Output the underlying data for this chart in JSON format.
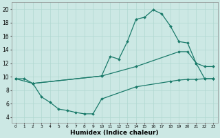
{
  "bg_color": "#cce8e4",
  "grid_color": "#b0d8d0",
  "line_color": "#1a7a6a",
  "line_width": 0.9,
  "marker": "D",
  "marker_size": 2.0,
  "xlabel": "Humidex (Indice chaleur)",
  "xlabel_fontsize": 6.5,
  "ytick_labels": [
    "4",
    "6",
    "8",
    "10",
    "12",
    "14",
    "16",
    "18",
    "20"
  ],
  "yticks": [
    4,
    6,
    8,
    10,
    12,
    14,
    16,
    18,
    20
  ],
  "xlim": [
    -0.5,
    23.5
  ],
  "ylim": [
    3.2,
    21.0
  ],
  "curve1_x": [
    0,
    1,
    2,
    10,
    11,
    12,
    13,
    14,
    15,
    16,
    17,
    18,
    19,
    20,
    21,
    22,
    23
  ],
  "curve1_y": [
    9.7,
    9.7,
    9.0,
    10.1,
    13.0,
    12.6,
    15.2,
    18.5,
    18.8,
    19.9,
    19.3,
    17.5,
    15.2,
    15.0,
    12.0,
    11.5,
    11.5
  ],
  "curve2_x": [
    0,
    2,
    10,
    14,
    19,
    20,
    21,
    22,
    23
  ],
  "curve2_y": [
    9.7,
    9.0,
    10.1,
    11.5,
    13.7,
    13.7,
    12.0,
    9.7,
    9.7
  ],
  "curve3_x": [
    2,
    3,
    4,
    5,
    6,
    7,
    8,
    9,
    10,
    14,
    18,
    19,
    20,
    21,
    22,
    23
  ],
  "curve3_y": [
    9.0,
    7.0,
    6.2,
    5.2,
    5.0,
    4.7,
    4.5,
    4.5,
    6.7,
    8.5,
    9.3,
    9.5,
    9.6,
    9.6,
    9.7,
    9.7
  ],
  "xtick_positions": [
    0,
    1,
    2,
    3,
    4,
    5,
    6,
    7,
    8,
    9,
    10,
    11,
    12,
    13,
    14,
    15,
    16,
    17,
    18,
    19,
    20,
    21,
    22,
    23
  ],
  "xtick_labels": [
    "0",
    "1",
    "2",
    "3",
    "4",
    "5",
    "6",
    "7",
    "8",
    "9",
    "10",
    "11",
    "12",
    "13",
    "14",
    "15",
    "16",
    "17",
    "18",
    "19",
    "20",
    "21",
    "22",
    "23"
  ]
}
